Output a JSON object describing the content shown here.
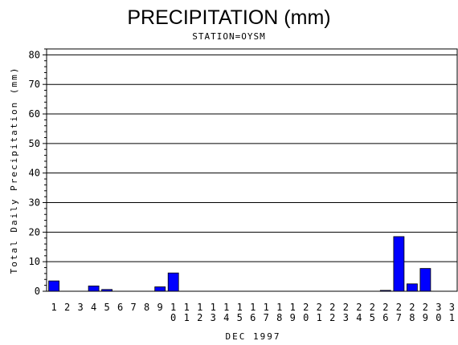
{
  "chart_data": {
    "type": "bar",
    "title": "PRECIPITATION (mm)",
    "subtitle": "STATION=OYSM",
    "xlabel": "DEC 1997",
    "ylabel": "Total Daily Precipitation (mm)",
    "ylim": [
      0,
      82
    ],
    "yticks": [
      0,
      10,
      20,
      30,
      40,
      50,
      60,
      70,
      80
    ],
    "grid": true,
    "categories": [
      "1",
      "2",
      "3",
      "4",
      "5",
      "6",
      "7",
      "8",
      "9",
      "10",
      "11",
      "12",
      "13",
      "14",
      "15",
      "16",
      "17",
      "18",
      "19",
      "20",
      "21",
      "22",
      "23",
      "24",
      "25",
      "26",
      "27",
      "28",
      "29",
      "30",
      "31"
    ],
    "values": [
      3.5,
      0,
      0,
      1.8,
      0.6,
      0,
      0,
      0,
      1.5,
      6.2,
      0,
      0,
      0,
      0,
      0,
      0,
      0,
      0,
      0,
      0,
      0,
      0,
      0,
      0,
      0,
      0.3,
      18.5,
      2.5,
      7.7,
      0,
      0
    ],
    "bar_color": "#0000ff"
  }
}
